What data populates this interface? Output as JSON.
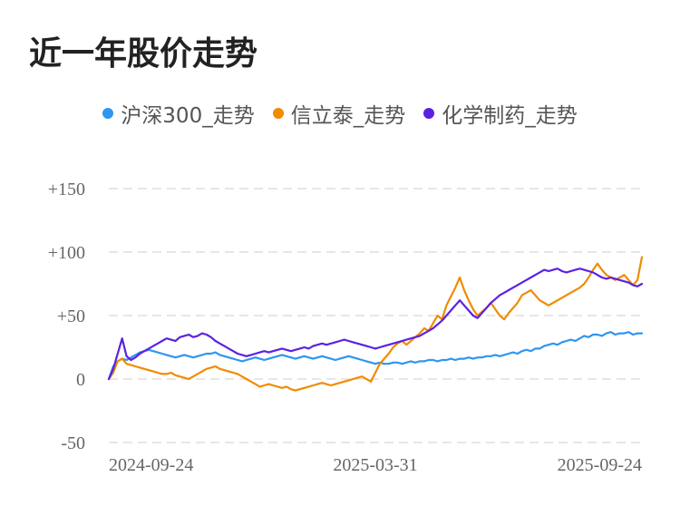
{
  "title": "近一年股价走势",
  "legend": [
    {
      "name": "沪深300_走势",
      "color": "#2E96F0"
    },
    {
      "name": "信立泰_走势",
      "color": "#F08C00"
    },
    {
      "name": "化学制药_走势",
      "color": "#5B21E3"
    }
  ],
  "chart_data": {
    "type": "line",
    "title": "近一年股价走势",
    "xlabel": "",
    "ylabel": "",
    "ylim": [
      -50,
      150
    ],
    "yticks": [
      {
        "value": 150,
        "label": "+150"
      },
      {
        "value": 100,
        "label": "+100"
      },
      {
        "value": 50,
        "label": "+50"
      },
      {
        "value": 0,
        "label": "0"
      },
      {
        "value": -50,
        "label": "-50"
      }
    ],
    "xticks": [
      {
        "index": 0,
        "label": "2024-09-24"
      },
      {
        "index": 60,
        "label": "2025-03-31"
      },
      {
        "index": 120,
        "label": "2025-09-24"
      }
    ],
    "grid": true,
    "legend_position": "top-center",
    "series": [
      {
        "name": "沪深300_走势",
        "color": "#2E96F0",
        "values": [
          0,
          10,
          14,
          16,
          15,
          17,
          19,
          21,
          22,
          23,
          22,
          21,
          20,
          19,
          18,
          17,
          18,
          19,
          18,
          17,
          18,
          19,
          20,
          20,
          21,
          19,
          18,
          17,
          16,
          15,
          14,
          15,
          16,
          17,
          16,
          15,
          16,
          17,
          18,
          19,
          18,
          17,
          16,
          17,
          18,
          17,
          16,
          17,
          18,
          17,
          16,
          15,
          16,
          17,
          18,
          17,
          16,
          15,
          14,
          13,
          12,
          13,
          12,
          12,
          13,
          13,
          12,
          13,
          14,
          13,
          14,
          14,
          15,
          15,
          14,
          15,
          15,
          16,
          15,
          16,
          16,
          17,
          16,
          17,
          17,
          18,
          18,
          19,
          18,
          19,
          20,
          21,
          20,
          22,
          23,
          22,
          24,
          24,
          26,
          27,
          28,
          27,
          29,
          30,
          31,
          30,
          32,
          34,
          33,
          35,
          35,
          34,
          36,
          37,
          35,
          36,
          36,
          37,
          35,
          36,
          36
        ]
      },
      {
        "name": "信立泰_走势",
        "color": "#F08C00",
        "values": [
          0,
          5,
          14,
          16,
          12,
          11,
          10,
          9,
          8,
          7,
          6,
          5,
          4,
          4,
          5,
          3,
          2,
          1,
          0,
          2,
          4,
          6,
          8,
          9,
          10,
          8,
          7,
          6,
          5,
          4,
          2,
          0,
          -2,
          -4,
          -6,
          -5,
          -4,
          -5,
          -6,
          -7,
          -6,
          -8,
          -9,
          -8,
          -7,
          -6,
          -5,
          -4,
          -3,
          -4,
          -5,
          -4,
          -3,
          -2,
          -1,
          0,
          1,
          2,
          0,
          -2,
          5,
          12,
          16,
          20,
          25,
          28,
          30,
          27,
          30,
          33,
          36,
          40,
          38,
          44,
          50,
          47,
          58,
          65,
          72,
          80,
          70,
          62,
          55,
          50,
          53,
          56,
          60,
          55,
          50,
          47,
          52,
          56,
          60,
          66,
          68,
          70,
          66,
          62,
          60,
          58,
          60,
          62,
          64,
          66,
          68,
          70,
          72,
          75,
          80,
          86,
          91,
          86,
          82,
          80,
          78,
          80,
          82,
          78,
          74,
          78,
          96
        ]
      },
      {
        "name": "化学制药_走势",
        "color": "#5B21E3",
        "values": [
          0,
          8,
          20,
          32,
          18,
          15,
          17,
          20,
          22,
          24,
          26,
          28,
          30,
          32,
          31,
          30,
          33,
          34,
          35,
          33,
          34,
          36,
          35,
          33,
          30,
          28,
          26,
          24,
          22,
          20,
          19,
          18,
          19,
          20,
          21,
          22,
          21,
          22,
          23,
          24,
          23,
          22,
          23,
          24,
          25,
          24,
          26,
          27,
          28,
          27,
          28,
          29,
          30,
          31,
          30,
          29,
          28,
          27,
          26,
          25,
          24,
          25,
          26,
          27,
          28,
          29,
          30,
          31,
          32,
          33,
          34,
          36,
          38,
          40,
          43,
          46,
          50,
          54,
          58,
          62,
          58,
          54,
          50,
          48,
          52,
          56,
          60,
          63,
          66,
          68,
          70,
          72,
          74,
          76,
          78,
          80,
          82,
          84,
          86,
          85,
          86,
          87,
          85,
          84,
          85,
          86,
          87,
          86,
          85,
          84,
          82,
          80,
          79,
          80,
          79,
          78,
          77,
          76,
          74,
          73,
          75
        ]
      }
    ]
  }
}
